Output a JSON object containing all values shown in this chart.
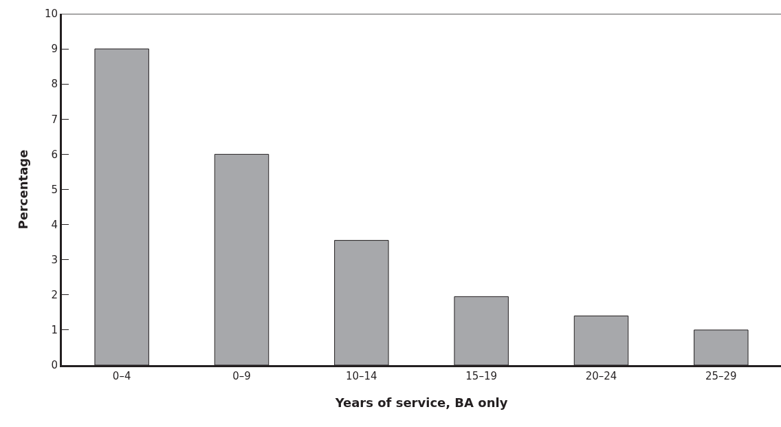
{
  "chart_data": {
    "type": "bar",
    "xlabel": "Years of service, BA only",
    "ylabel": "Percentage",
    "categories": [
      "0–4",
      "0–9",
      "10–14",
      "15–19",
      "20–24",
      "25–29"
    ],
    "values": [
      9,
      6,
      3.55,
      1.95,
      1.4,
      1.0
    ],
    "color": "#a7a8ab",
    "ylim": [
      0,
      10
    ],
    "yticks": [
      0,
      1,
      2,
      3,
      4,
      5,
      6,
      7,
      8,
      9,
      10
    ]
  }
}
